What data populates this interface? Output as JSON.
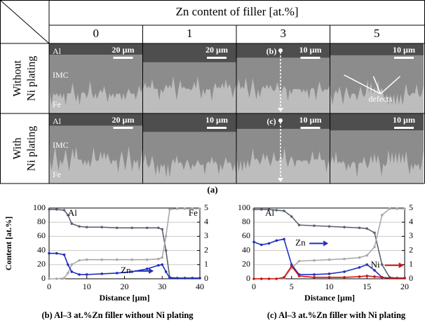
{
  "figure": {
    "header": "Zn content of filler [at.%]",
    "columns": [
      "0",
      "1",
      "3",
      "5"
    ],
    "rows": [
      {
        "label": [
          "Without",
          "Ni plating"
        ],
        "cells": [
          {
            "layers": [
              "Al",
              "IMC",
              "Fe"
            ],
            "scale": "20 µm"
          },
          {
            "scale": "20 µm"
          },
          {
            "tag": "(b)",
            "scale": "10 µm"
          },
          {
            "scale": "10 µm",
            "note": "defects"
          }
        ]
      },
      {
        "label": [
          "With",
          "Ni plating"
        ],
        "cells": [
          {
            "layers": [
              "Al",
              "IMC",
              "Fe"
            ],
            "scale": "20 µm"
          },
          {
            "scale": "10 µm"
          },
          {
            "tag": "(c)",
            "scale": "10 µm"
          },
          {
            "scale": "10 µm"
          }
        ]
      }
    ],
    "panel_label": "(a)"
  },
  "chart_data": [
    {
      "type": "line",
      "caption": "(b) Al–3 at.%Zn filler without Ni plating",
      "ylabel": "Content [at.%]",
      "xlabel": "Distance [µm]",
      "x": [
        0,
        2,
        4,
        5,
        6,
        8,
        10,
        14,
        18,
        22,
        26,
        29,
        30,
        31,
        32,
        34,
        36,
        38,
        40
      ],
      "xlim": [
        0,
        40
      ],
      "xticks": [
        0,
        10,
        20,
        30,
        40
      ],
      "ylim": [
        0,
        100
      ],
      "yticks": [
        0,
        20,
        40,
        60,
        80,
        100
      ],
      "y2lim": [
        0,
        5
      ],
      "y2ticks": [
        0,
        1,
        2,
        3,
        4,
        5
      ],
      "grid": true,
      "series": [
        {
          "name": "Al",
          "color": "#5b6272",
          "values": [
            98,
            98,
            97,
            90,
            78,
            74,
            73,
            73,
            72,
            72,
            72,
            72,
            70,
            40,
            2,
            1,
            1,
            1,
            1
          ]
        },
        {
          "name": "Fe",
          "color": "#a9a9a9",
          "values": [
            0,
            0,
            1,
            8,
            20,
            26,
            27,
            27,
            27,
            27,
            27,
            28,
            30,
            60,
            98,
            99,
            99,
            99,
            99
          ]
        },
        {
          "name": "Zn",
          "color": "#1f2fbf",
          "axis": "y2",
          "values": [
            1.8,
            1.8,
            1.7,
            1.0,
            0.5,
            0.3,
            0.3,
            0.35,
            0.4,
            0.5,
            0.7,
            0.95,
            1.0,
            0.5,
            0.05,
            0.05,
            0.05,
            0.05,
            0.05
          ]
        }
      ]
    },
    {
      "type": "line",
      "caption": "(c) Al–3 at.%Zn filler with Ni plating",
      "x": [
        0,
        1,
        2,
        3,
        4,
        5,
        6,
        8,
        10,
        12,
        14,
        15,
        16,
        17,
        18,
        19,
        20
      ],
      "xlim": [
        0,
        20
      ],
      "xticks": [
        0,
        5,
        10,
        15,
        20
      ],
      "ylim": [
        0,
        100
      ],
      "yticks": [
        0,
        20,
        40,
        60,
        80,
        100
      ],
      "y2lim": [
        0,
        5
      ],
      "y2ticks": [
        0,
        1,
        2,
        3,
        4,
        5
      ],
      "grid": true,
      "series": [
        {
          "name": "Al",
          "color": "#5b6272",
          "values": [
            98,
            98,
            98,
            97,
            96,
            88,
            76,
            75,
            74,
            73,
            72,
            71,
            65,
            20,
            2,
            1,
            1
          ]
        },
        {
          "color": "#a9a9a9",
          "values": [
            0,
            0,
            0,
            0,
            1,
            15,
            25,
            26,
            27,
            28,
            30,
            33,
            45,
            90,
            99,
            99,
            99
          ]
        },
        {
          "name": "Zn",
          "color": "#1f2fbf",
          "axis": "y2",
          "values": [
            2.6,
            2.4,
            2.5,
            2.7,
            2.8,
            1.0,
            0.3,
            0.3,
            0.35,
            0.5,
            0.8,
            1.0,
            0.6,
            0.1,
            0.05,
            0.05,
            0.05
          ]
        },
        {
          "name": "Ni",
          "color": "#d01414",
          "axis": "y2",
          "values": [
            0,
            0,
            0,
            0,
            0.1,
            0.9,
            0.2,
            0.1,
            0.1,
            0.1,
            0.15,
            0.2,
            0.15,
            0.1,
            0.05,
            0.05,
            0.05
          ]
        }
      ]
    }
  ]
}
